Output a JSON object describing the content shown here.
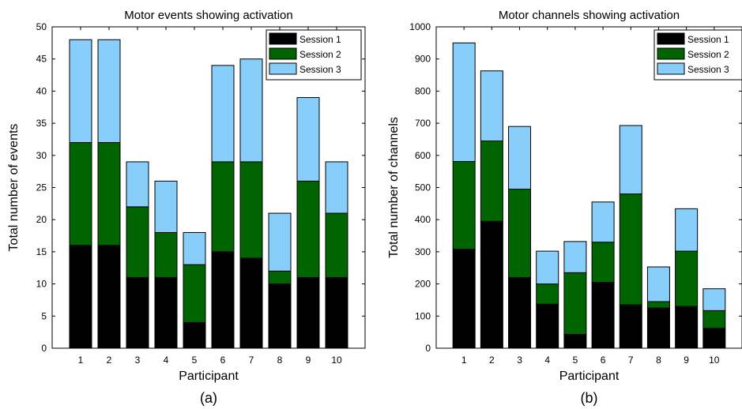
{
  "colors": {
    "session1": "#000000",
    "session2": "#006400",
    "session3": "#87CEFA"
  },
  "chart_data": [
    {
      "type": "bar",
      "stacked": true,
      "panel_label": "(a)",
      "title": "Motor events showing activation",
      "xlabel": "Participant",
      "ylabel": "Total number of events",
      "categories": [
        "1",
        "2",
        "3",
        "4",
        "5",
        "6",
        "7",
        "8",
        "9",
        "10"
      ],
      "ylim": [
        0,
        50
      ],
      "yticks": [
        "0",
        "5",
        "10",
        "15",
        "20",
        "25",
        "30",
        "35",
        "40",
        "45",
        "50"
      ],
      "legend_position": "top-right",
      "series": [
        {
          "name": "Session 1",
          "values": [
            16,
            16,
            11,
            11,
            4,
            15,
            14,
            10,
            11,
            11
          ]
        },
        {
          "name": "Session 2",
          "values": [
            16,
            16,
            11,
            7,
            9,
            14,
            15,
            2,
            15,
            10
          ]
        },
        {
          "name": "Session 3",
          "values": [
            16,
            16,
            7,
            8,
            5,
            15,
            16,
            9,
            13,
            8
          ]
        }
      ]
    },
    {
      "type": "bar",
      "stacked": true,
      "panel_label": "(b)",
      "title": "Motor channels showing activation",
      "xlabel": "Participant",
      "ylabel": "Total number of channels",
      "categories": [
        "1",
        "2",
        "3",
        "4",
        "5",
        "6",
        "7",
        "8",
        "9",
        "10"
      ],
      "ylim": [
        0,
        1000
      ],
      "yticks": [
        "0",
        "100",
        "200",
        "300",
        "400",
        "500",
        "600",
        "700",
        "800",
        "900",
        "1000"
      ],
      "legend_position": "top-right",
      "series": [
        {
          "name": "Session 1",
          "values": [
            308,
            395,
            220,
            137,
            43,
            205,
            135,
            125,
            130,
            62
          ]
        },
        {
          "name": "Session 2",
          "values": [
            273,
            250,
            275,
            63,
            192,
            125,
            345,
            20,
            172,
            55
          ]
        },
        {
          "name": "Session 3",
          "values": [
            369,
            218,
            195,
            102,
            97,
            125,
            213,
            108,
            132,
            68
          ]
        }
      ]
    }
  ]
}
